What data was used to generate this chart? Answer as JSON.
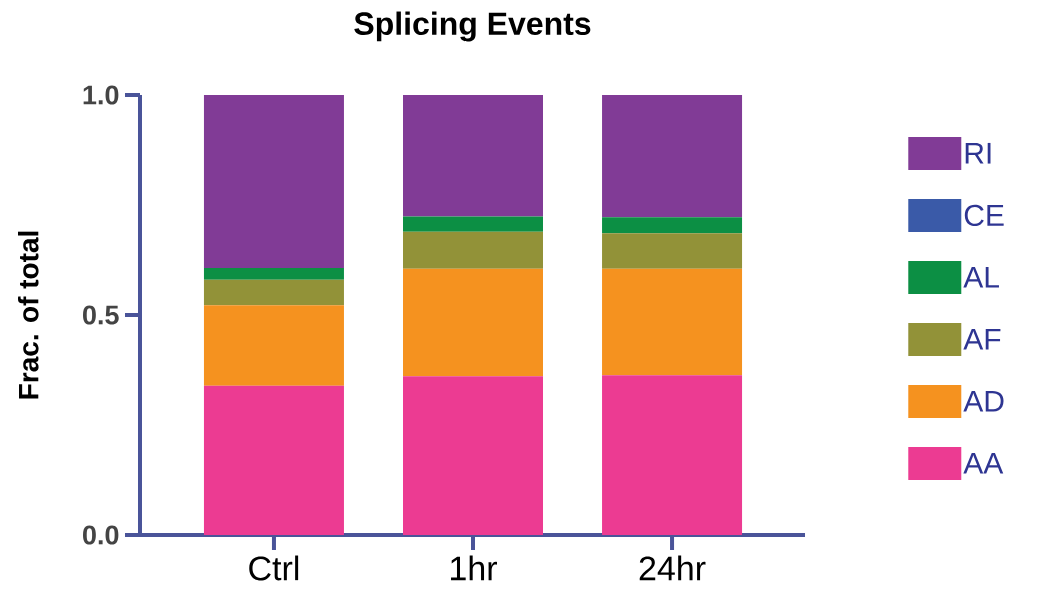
{
  "chart_data": {
    "type": "bar",
    "title": "Splicing Events",
    "ylabel": "Frac. of total",
    "categories": [
      "Ctrl",
      "1hr",
      "24hr"
    ],
    "stacked": true,
    "legend": "right",
    "ylim": [
      0,
      1
    ],
    "yticks": [
      {
        "value": 0,
        "label": "0.0"
      },
      {
        "value": 0.5,
        "label": "0.5"
      },
      {
        "value": 1,
        "label": "1.0"
      }
    ],
    "series": [
      {
        "name": "AA",
        "color": "#ec3b92",
        "values": [
          0.339,
          0.361,
          0.363
        ]
      },
      {
        "name": "AD",
        "color": "#f5921f",
        "values": [
          0.183,
          0.244,
          0.242
        ]
      },
      {
        "name": "AF",
        "color": "#929238",
        "values": [
          0.058,
          0.084,
          0.081
        ]
      },
      {
        "name": "AL",
        "color": "#0c8f44",
        "values": [
          0.027,
          0.035,
          0.036
        ]
      },
      {
        "name": "CE",
        "color": "#3a5aa8",
        "values": [
          0,
          0,
          0
        ]
      },
      {
        "name": "RI",
        "color": "#813b96",
        "values": [
          0.393,
          0.276,
          0.278
        ]
      }
    ]
  }
}
